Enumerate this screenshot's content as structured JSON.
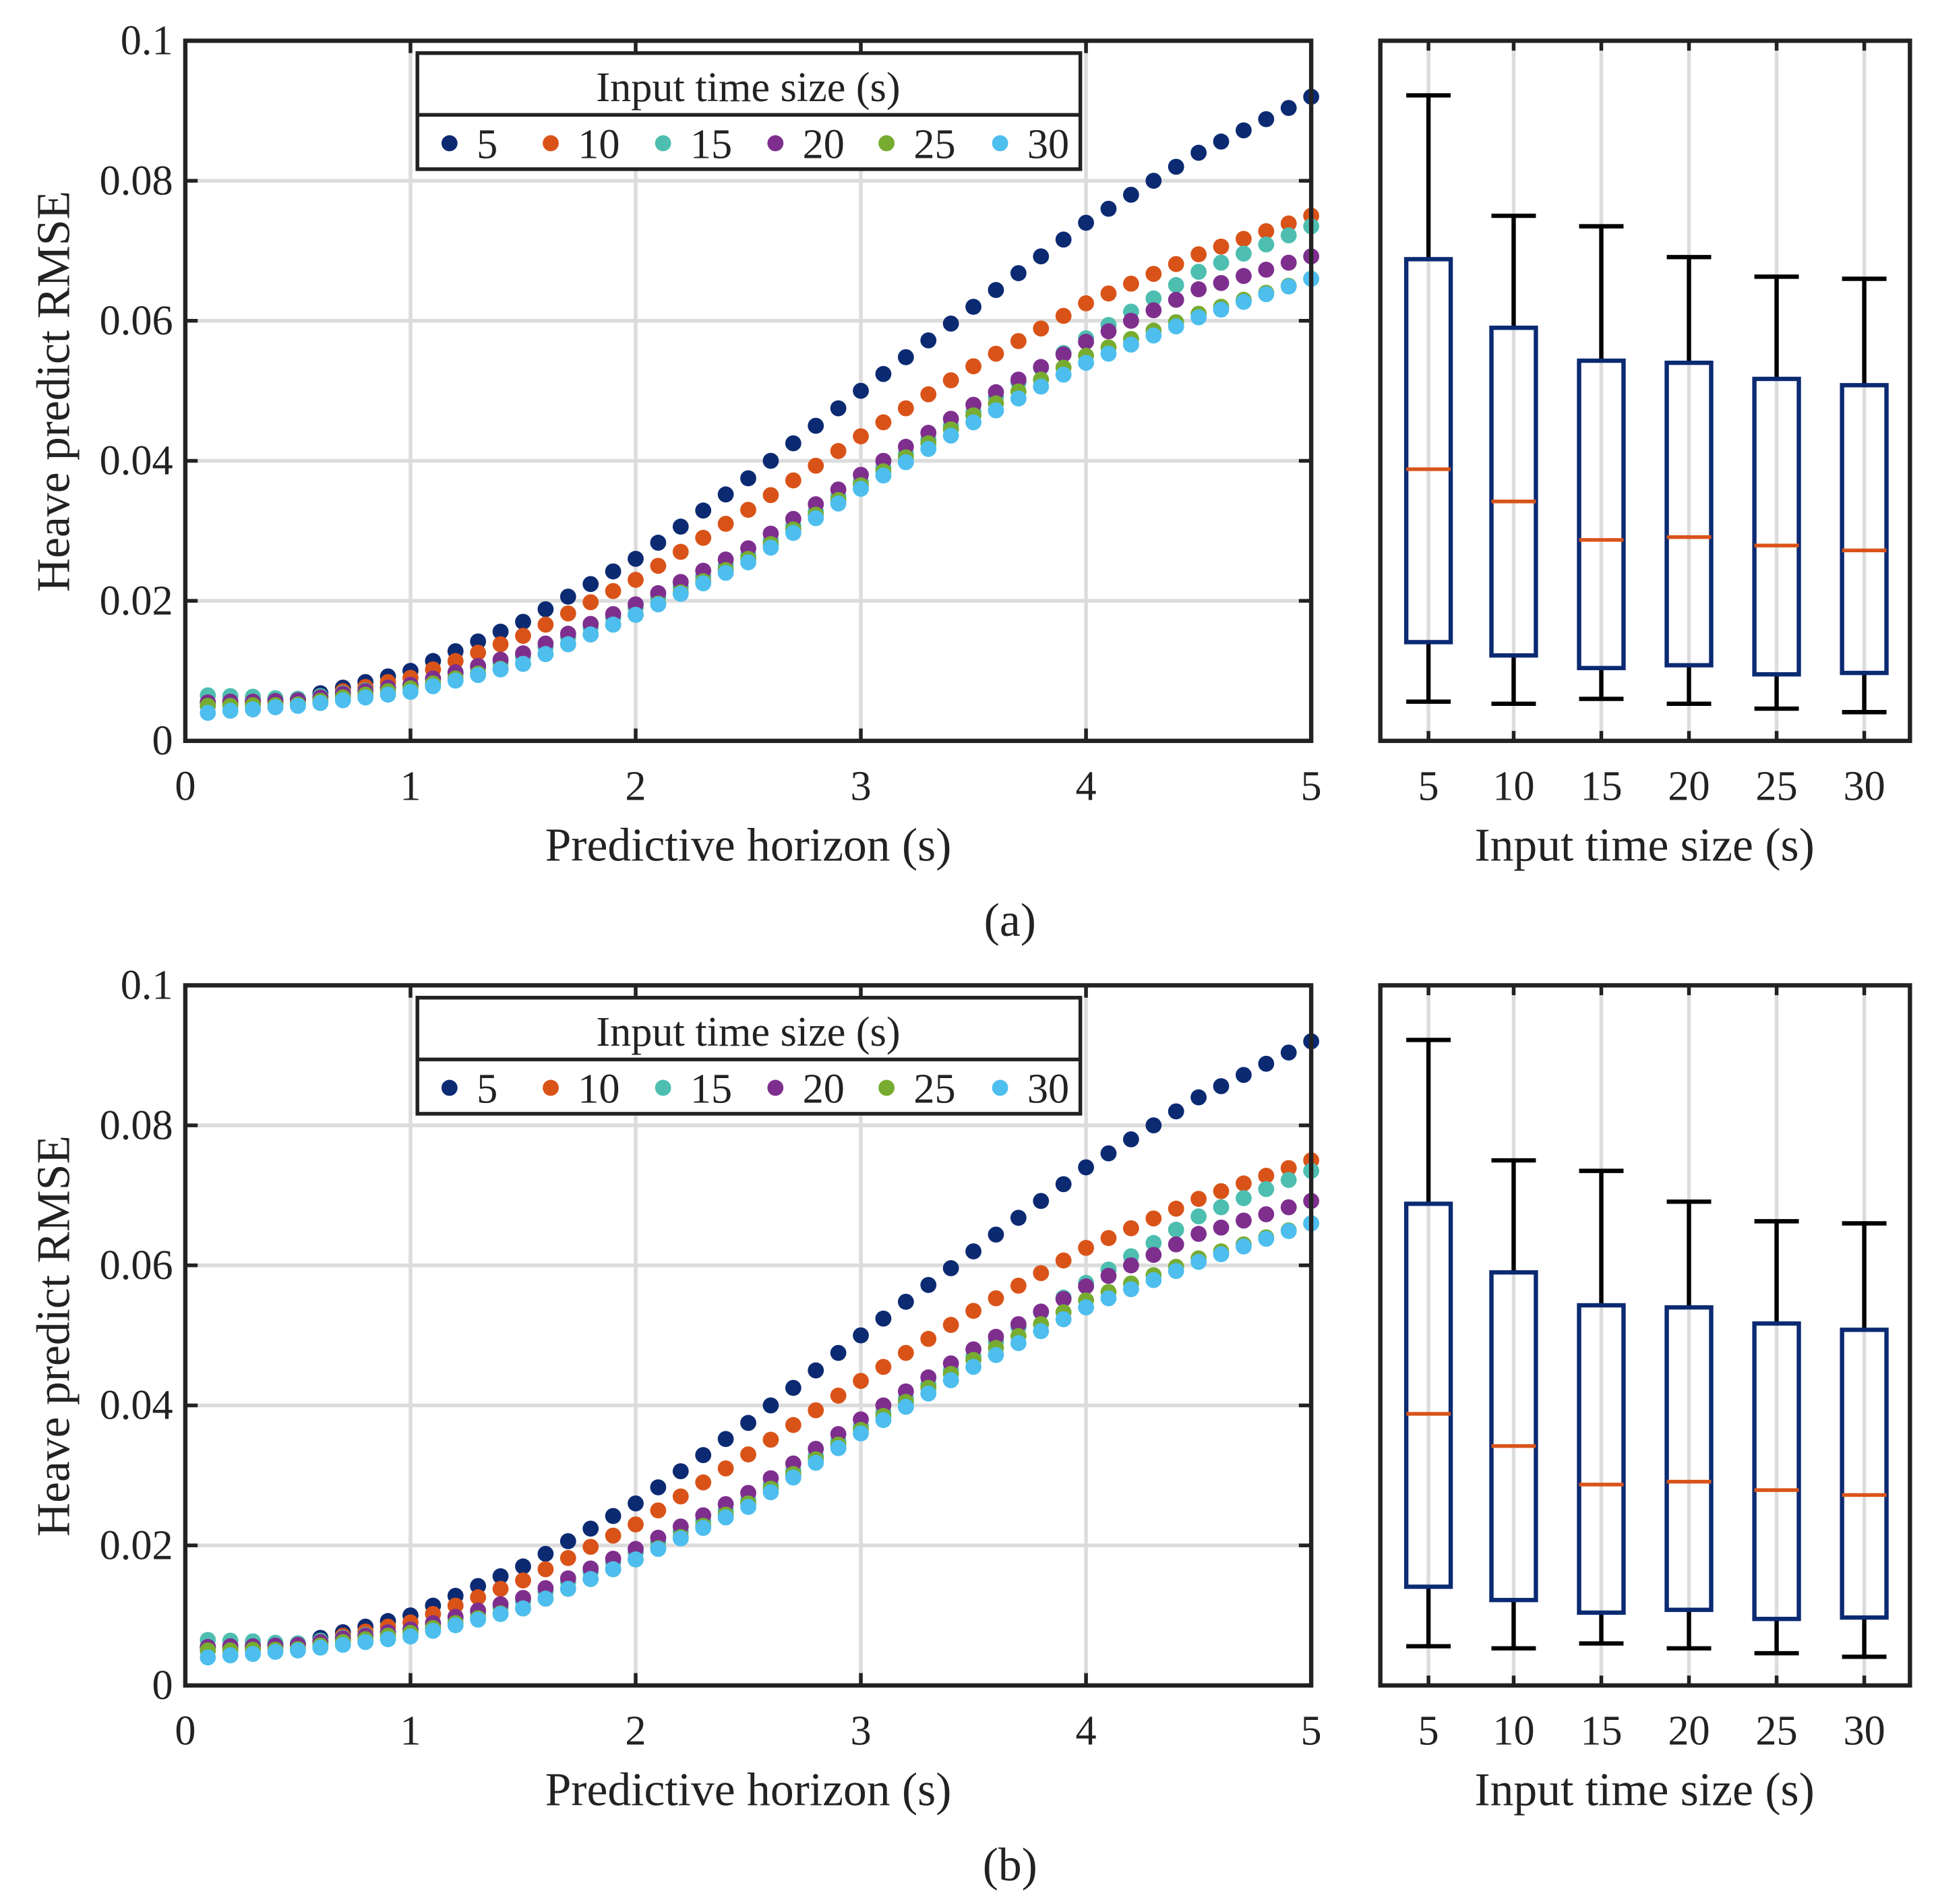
{
  "panels": [
    {
      "label": "(a)"
    },
    {
      "label": "(b)"
    }
  ],
  "colors": {
    "5": "#0b2a72",
    "10": "#d95319",
    "15": "#4dbeb0",
    "20": "#7e2f8e",
    "25": "#77ac30",
    "30": "#4dbeee",
    "box": "#0b2a72",
    "median": "#d95319",
    "whisker": "#000000",
    "grid": "#dcdcdc"
  },
  "chart_data": [
    {
      "type": "scatter",
      "xlabel": "Predictive horizon (s)",
      "ylabel": "Heave predict RMSE",
      "xlim": [
        0,
        5
      ],
      "ylim": [
        0,
        0.1
      ],
      "xticks": [
        "0",
        "1",
        "2",
        "3",
        "4",
        "5"
      ],
      "yticks": [
        "0",
        "0.02",
        "0.04",
        "0.06",
        "0.08",
        "0.1"
      ],
      "grid": true,
      "legend": {
        "title": "Input time size (s)",
        "placement": "top-center",
        "orientation": "horizontal"
      },
      "x": {
        "start": 0.1,
        "step": 0.1,
        "count": 50
      },
      "series": [
        {
          "name": "5",
          "values": [
            0.0055,
            0.0056,
            0.0057,
            0.0059,
            0.006,
            0.0068,
            0.0076,
            0.0084,
            0.0092,
            0.01,
            0.0114,
            0.0128,
            0.0142,
            0.0156,
            0.017,
            0.0188,
            0.0206,
            0.0224,
            0.0242,
            0.026,
            0.0283,
            0.0306,
            0.0329,
            0.0352,
            0.0375,
            0.04,
            0.0425,
            0.045,
            0.0475,
            0.05,
            0.0524,
            0.0548,
            0.0572,
            0.0596,
            0.062,
            0.0644,
            0.0668,
            0.0692,
            0.0716,
            0.074,
            0.076,
            0.078,
            0.08,
            0.082,
            0.084,
            0.0856,
            0.0872,
            0.0888,
            0.0904,
            0.092
          ]
        },
        {
          "name": "10",
          "values": [
            0.005,
            0.0052,
            0.0054,
            0.0056,
            0.0058,
            0.0064,
            0.0071,
            0.0077,
            0.0084,
            0.009,
            0.0102,
            0.0114,
            0.0126,
            0.0138,
            0.015,
            0.0166,
            0.0182,
            0.0198,
            0.0214,
            0.023,
            0.025,
            0.027,
            0.029,
            0.031,
            0.033,
            0.0351,
            0.0372,
            0.0393,
            0.0414,
            0.0435,
            0.0455,
            0.0475,
            0.0495,
            0.0515,
            0.0535,
            0.0553,
            0.0571,
            0.0589,
            0.0607,
            0.0625,
            0.0639,
            0.0653,
            0.0667,
            0.0681,
            0.0695,
            0.0706,
            0.0717,
            0.0728,
            0.0739,
            0.075
          ]
        },
        {
          "name": "15",
          "values": [
            0.0065,
            0.0064,
            0.0063,
            0.0061,
            0.006,
            0.0064,
            0.0068,
            0.0072,
            0.0076,
            0.008,
            0.0088,
            0.0096,
            0.0104,
            0.0112,
            0.012,
            0.0134,
            0.0148,
            0.0162,
            0.0176,
            0.019,
            0.0205,
            0.022,
            0.0235,
            0.025,
            0.0265,
            0.0286,
            0.0307,
            0.0328,
            0.0349,
            0.037,
            0.039,
            0.041,
            0.043,
            0.045,
            0.047,
            0.0491,
            0.0512,
            0.0533,
            0.0554,
            0.0575,
            0.0594,
            0.0613,
            0.0632,
            0.0651,
            0.067,
            0.0683,
            0.0696,
            0.0709,
            0.0722,
            0.0735
          ]
        },
        {
          "name": "20",
          "values": [
            0.0055,
            0.0056,
            0.0056,
            0.0057,
            0.0058,
            0.0062,
            0.0067,
            0.0071,
            0.0076,
            0.008,
            0.0089,
            0.0098,
            0.0107,
            0.0116,
            0.0125,
            0.0139,
            0.0153,
            0.0167,
            0.0181,
            0.0195,
            0.0211,
            0.0227,
            0.0243,
            0.0259,
            0.0275,
            0.0296,
            0.0317,
            0.0338,
            0.0359,
            0.038,
            0.04,
            0.042,
            0.044,
            0.046,
            0.048,
            0.0498,
            0.0516,
            0.0534,
            0.0552,
            0.057,
            0.0585,
            0.06,
            0.0615,
            0.063,
            0.0645,
            0.0654,
            0.0664,
            0.0673,
            0.0683,
            0.0692
          ]
        },
        {
          "name": "25",
          "values": [
            0.005,
            0.005,
            0.0051,
            0.0051,
            0.0052,
            0.0057,
            0.0062,
            0.0066,
            0.0071,
            0.0075,
            0.0082,
            0.0089,
            0.0096,
            0.0103,
            0.011,
            0.0124,
            0.0138,
            0.0152,
            0.0166,
            0.018,
            0.0196,
            0.0212,
            0.0228,
            0.0244,
            0.026,
            0.0281,
            0.0302,
            0.0323,
            0.0344,
            0.0365,
            0.0385,
            0.0405,
            0.0425,
            0.0445,
            0.0465,
            0.0482,
            0.0499,
            0.0516,
            0.0533,
            0.055,
            0.0562,
            0.0574,
            0.0586,
            0.0598,
            0.061,
            0.062,
            0.063,
            0.064,
            0.065,
            0.066
          ]
        },
        {
          "name": "30",
          "values": [
            0.004,
            0.0043,
            0.0045,
            0.0048,
            0.005,
            0.0054,
            0.0058,
            0.0062,
            0.0066,
            0.007,
            0.0078,
            0.0086,
            0.0094,
            0.0102,
            0.011,
            0.0124,
            0.0138,
            0.0152,
            0.0166,
            0.018,
            0.0195,
            0.021,
            0.0225,
            0.024,
            0.0255,
            0.0276,
            0.0297,
            0.0318,
            0.0339,
            0.036,
            0.0379,
            0.0398,
            0.0417,
            0.0436,
            0.0455,
            0.0472,
            0.0489,
            0.0506,
            0.0523,
            0.054,
            0.0553,
            0.0566,
            0.0579,
            0.0592,
            0.0605,
            0.0616,
            0.0627,
            0.0638,
            0.0649,
            0.066
          ]
        }
      ]
    },
    {
      "type": "box",
      "xlabel": "Input time size (s)",
      "ylim": [
        0,
        0.1
      ],
      "grid": true,
      "categories": [
        "5",
        "10",
        "15",
        "20",
        "25",
        "30"
      ],
      "boxes": [
        {
          "min": 0.0056,
          "q1": 0.0141,
          "median": 0.0388,
          "q3": 0.0688,
          "max": 0.0922
        },
        {
          "min": 0.0053,
          "q1": 0.0122,
          "median": 0.0342,
          "q3": 0.059,
          "max": 0.075
        },
        {
          "min": 0.006,
          "q1": 0.0104,
          "median": 0.0287,
          "q3": 0.0543,
          "max": 0.0735
        },
        {
          "min": 0.0053,
          "q1": 0.0108,
          "median": 0.0291,
          "q3": 0.054,
          "max": 0.0691
        },
        {
          "min": 0.0046,
          "q1": 0.0095,
          "median": 0.0279,
          "q3": 0.0517,
          "max": 0.0663
        },
        {
          "min": 0.0041,
          "q1": 0.0097,
          "median": 0.0272,
          "q3": 0.0508,
          "max": 0.066
        }
      ]
    }
  ]
}
